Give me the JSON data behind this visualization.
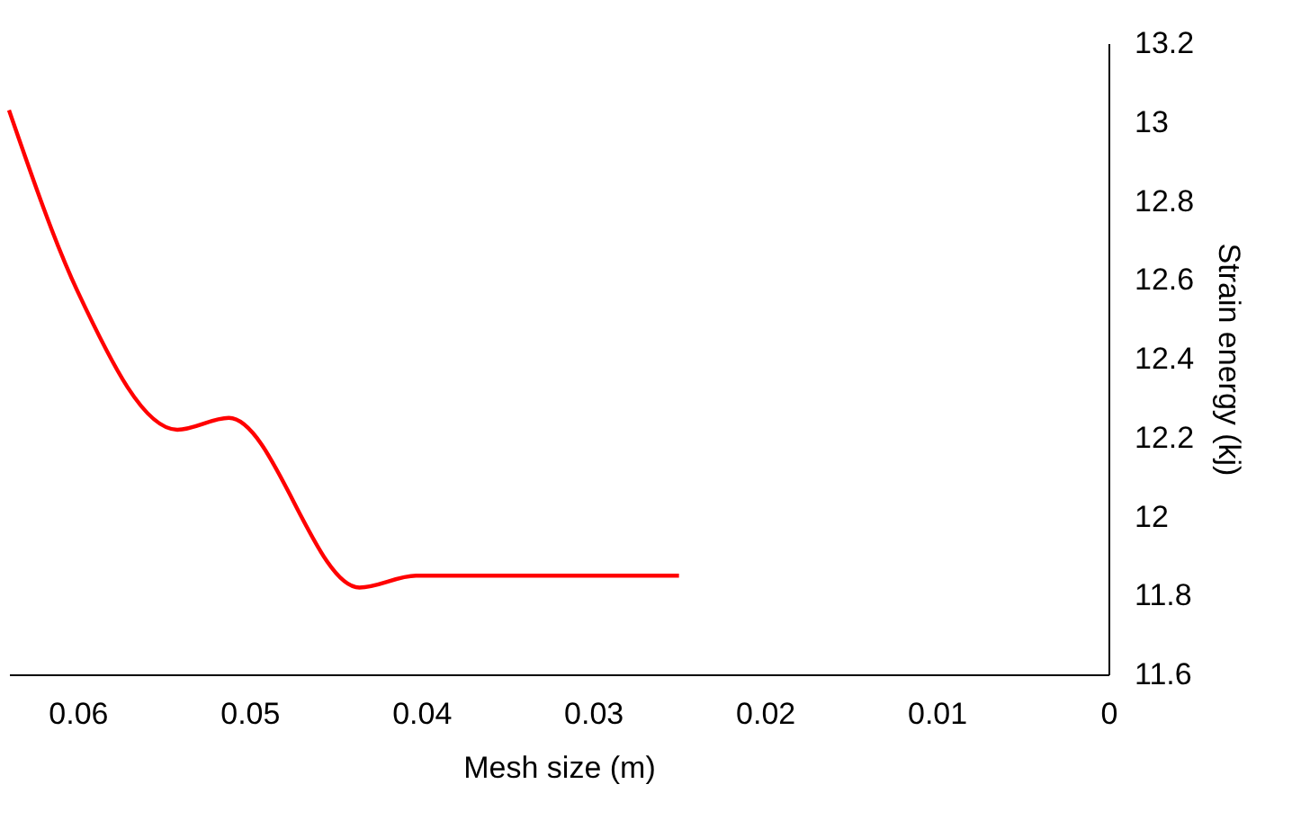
{
  "chart_data": {
    "type": "line",
    "xlabel": "Mesh size (m)",
    "ylabel": "Strain energy (kj)",
    "x": [
      0.064,
      0.06,
      0.0542,
      0.0512,
      0.0436,
      0.0403,
      0.025
    ],
    "series": [
      {
        "color": "#ff0000",
        "values": [
          13.03,
          12.57,
          12.22,
          12.25,
          11.82,
          11.85,
          11.85
        ]
      }
    ],
    "xlim": [
      0.064,
      0
    ],
    "xticks": [
      0.06,
      0.05,
      0.04,
      0.03,
      0.02,
      0.01,
      0
    ],
    "ylim": [
      11.6,
      13.2
    ],
    "yticks": [
      11.6,
      11.8,
      12,
      12.2,
      12.4,
      12.6,
      12.8,
      13,
      13.2
    ],
    "grid": false,
    "marker": "none",
    "line_style": "solid"
  }
}
